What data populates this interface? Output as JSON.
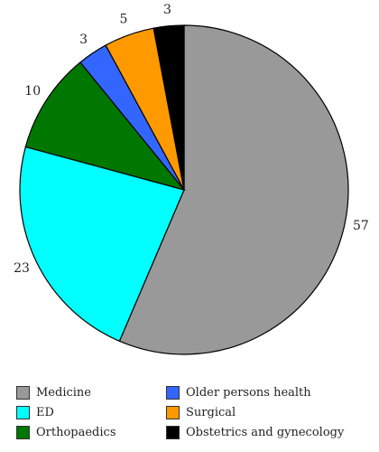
{
  "chart_data": {
    "type": "pie",
    "start_angle_deg": 0,
    "direction": "clockwise",
    "slices": [
      {
        "label": "Medicine",
        "value": 57,
        "color": "#999999"
      },
      {
        "label": "ED",
        "value": 23,
        "color": "#00ffff"
      },
      {
        "label": "Orthopaedics",
        "value": 10,
        "color": "#007700"
      },
      {
        "label": "Older persons health",
        "value": 3,
        "color": "#3366ff"
      },
      {
        "label": "Surgical",
        "value": 5,
        "color": "#ff9900"
      },
      {
        "label": "Obstetrics and gynecology",
        "value": 3,
        "color": "#000000"
      }
    ],
    "legend_position": "bottom"
  }
}
